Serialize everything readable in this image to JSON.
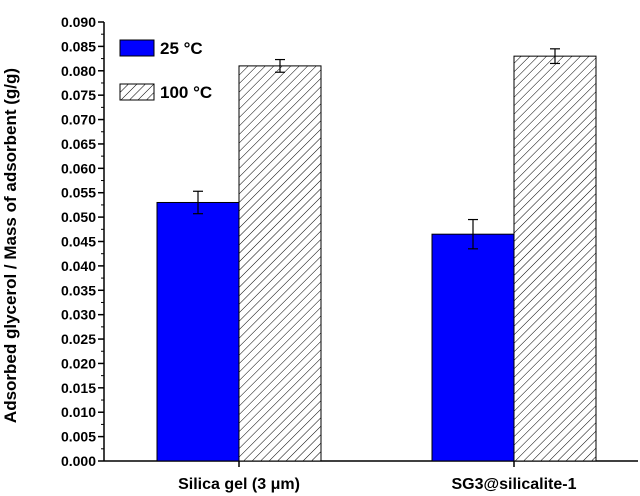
{
  "chart_data": {
    "type": "bar",
    "title": "",
    "xlabel": "",
    "ylabel": "Adsorbed glycerol / Mass of adsorbent (g/g)",
    "categories": [
      "Silica gel (3 μm)",
      "SG3@silicalite-1"
    ],
    "ylim": [
      0,
      0.09
    ],
    "yticks": [
      "0.000",
      "0.005",
      "0.010",
      "0.015",
      "0.020",
      "0.025",
      "0.030",
      "0.035",
      "0.040",
      "0.045",
      "0.050",
      "0.055",
      "0.060",
      "0.065",
      "0.070",
      "0.075",
      "0.080",
      "0.085",
      "0.090"
    ],
    "legend_position": "top-left",
    "series": [
      {
        "name": "25 °C",
        "values": [
          0.053,
          0.0465
        ],
        "errors": [
          0.0023,
          0.003
        ],
        "color": "#0000ff",
        "fill": "solid"
      },
      {
        "name": "100 °C",
        "values": [
          0.081,
          0.083
        ],
        "errors": [
          0.0013,
          0.0015
        ],
        "color": "#ffffff",
        "fill": "hatched"
      }
    ],
    "grid": false
  }
}
